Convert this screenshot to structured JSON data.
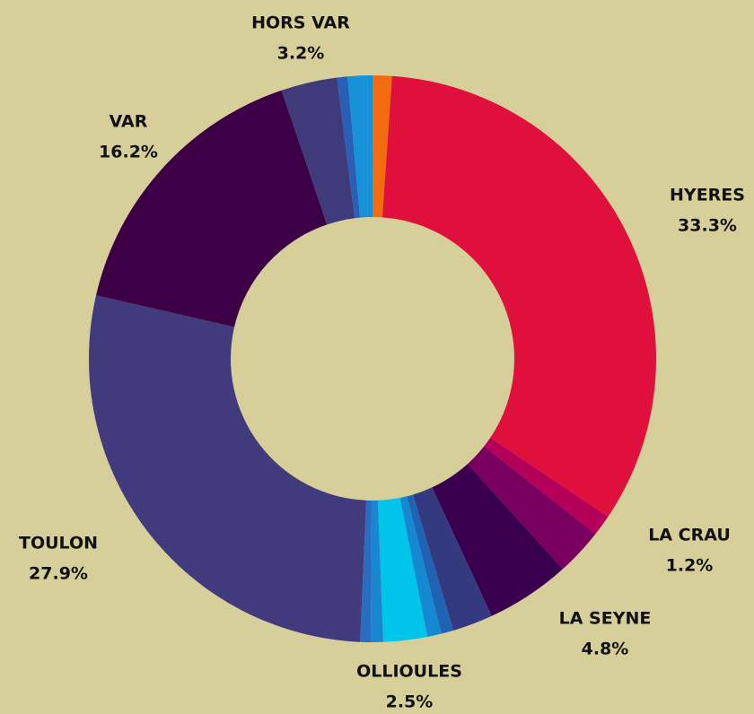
{
  "chart_data": {
    "type": "donut",
    "categories": [
      null,
      "HYERES",
      "LA CRAU",
      null,
      "LA SEYNE",
      null,
      null,
      null,
      "OLLIOULES",
      null,
      null,
      "TOULON",
      "VAR",
      "HORS VAR",
      null,
      null
    ],
    "values": [
      1.1,
      33.3,
      1.2,
      2.7,
      4.8,
      2.3,
      0.7,
      0.8,
      2.5,
      0.7,
      0.6,
      27.9,
      16.2,
      3.2,
      0.6,
      1.4
    ],
    "value_labels": [
      null,
      "33.3%",
      "1.2%",
      null,
      "4.8%",
      null,
      null,
      null,
      "2.5%",
      null,
      null,
      "27.9%",
      "16.2%",
      "3.2%",
      null,
      null
    ],
    "colors": [
      "#f26b0f",
      "#e0103c",
      "#b5005a",
      "#7a0060",
      "#3a004f",
      "#333a80",
      "#1f64b4",
      "#1488d0",
      "#00c4ea",
      "#1b86d0",
      "#2a6cc0",
      "#413a7c",
      "#3d0047",
      "#3f3a7a",
      "#2a5fb8",
      "#1592d8"
    ]
  }
}
